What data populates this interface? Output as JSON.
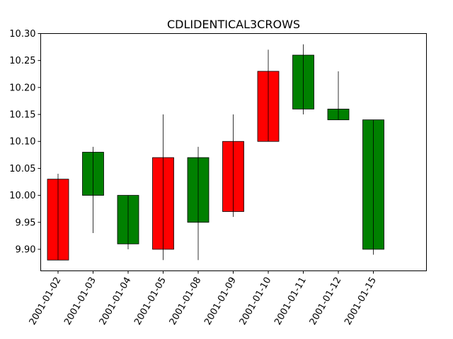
{
  "chart_data": {
    "type": "candlestick",
    "title": "CDLIDENTICAL3CROWS",
    "xlabel": "",
    "ylabel": "",
    "ylim": [
      9.86,
      10.3
    ],
    "yticks": [
      "9.90",
      "9.95",
      "10.00",
      "10.05",
      "10.10",
      "10.15",
      "10.20",
      "10.25",
      "10.30"
    ],
    "grid": false,
    "colors": {
      "up": "#008000",
      "down": "#ff0000",
      "edge": "#000000"
    },
    "candles": [
      {
        "date": "2001-01-02",
        "open": 10.03,
        "high": 10.04,
        "low": 9.88,
        "close": 9.88
      },
      {
        "date": "2001-01-03",
        "open": 10.0,
        "high": 10.09,
        "low": 9.93,
        "close": 10.08
      },
      {
        "date": "2001-01-04",
        "open": 9.91,
        "high": 10.0,
        "low": 9.9,
        "close": 10.0
      },
      {
        "date": "2001-01-05",
        "open": 10.07,
        "high": 10.15,
        "low": 9.88,
        "close": 9.9
      },
      {
        "date": "2001-01-08",
        "open": 9.95,
        "high": 10.09,
        "low": 9.88,
        "close": 10.07
      },
      {
        "date": "2001-01-09",
        "open": 10.1,
        "high": 10.15,
        "low": 9.96,
        "close": 9.97
      },
      {
        "date": "2001-01-10",
        "open": 10.23,
        "high": 10.27,
        "low": 10.1,
        "close": 10.1
      },
      {
        "date": "2001-01-11",
        "open": 10.16,
        "high": 10.28,
        "low": 10.15,
        "close": 10.26
      },
      {
        "date": "2001-01-12",
        "open": 10.14,
        "high": 10.23,
        "low": 10.14,
        "close": 10.16
      },
      {
        "date": "2001-01-15",
        "open": 9.9,
        "high": 10.14,
        "low": 9.89,
        "close": 10.14
      }
    ]
  }
}
